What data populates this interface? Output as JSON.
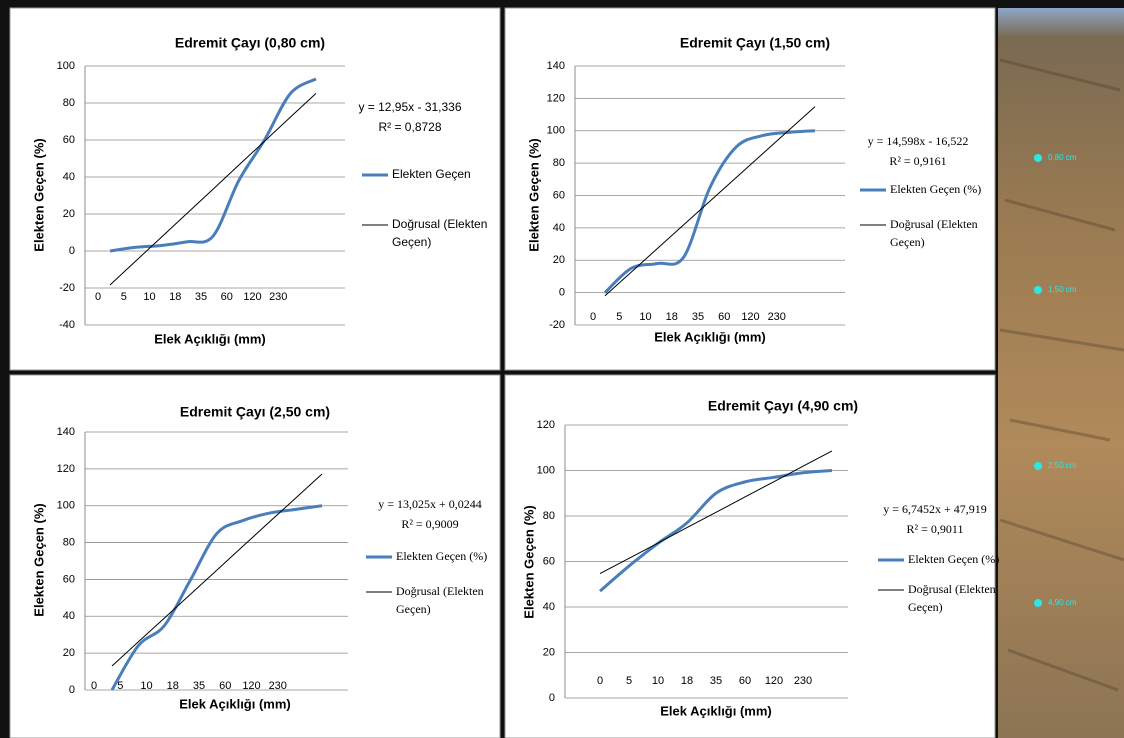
{
  "chart_data": [
    {
      "type": "line",
      "title": "Edremit Çayı (0,80 cm)",
      "xlabel": "Elek Açıklığı (mm)",
      "ylabel": "Elekten Geçen (%)",
      "categories": [
        "0",
        "5",
        "10",
        "18",
        "35",
        "60",
        "120",
        "230",
        null
      ],
      "series": [
        {
          "name": "Elekten Geçen",
          "color": "#4a7ebb",
          "values": [
            0,
            2,
            3,
            5,
            8,
            38,
            60,
            85,
            93
          ]
        },
        {
          "name": "Doğrusal (Elekten Geçen)",
          "color": "#000000",
          "values": [
            -18.4,
            -5.4,
            7.5,
            20.5,
            33.4,
            46.4,
            59.3,
            72.3,
            85.2
          ]
        }
      ],
      "ylim": [
        -40,
        100
      ],
      "yticks": [
        -40,
        -20,
        0,
        20,
        40,
        60,
        80,
        100
      ],
      "grid": true,
      "annotations": [
        "y = 12,95x - 31,336",
        "R² = 0,8728"
      ]
    },
    {
      "type": "line",
      "title": "Edremit Çayı (1,50 cm)",
      "xlabel": "Elek Açıklığı (mm)",
      "ylabel": "Elekten Geçen (%)",
      "categories": [
        "0",
        "5",
        "10",
        "18",
        "35",
        "60",
        "120",
        "230",
        null
      ],
      "series": [
        {
          "name": "Elekten Geçen (%)",
          "color": "#4a7ebb",
          "values": [
            0,
            15,
            18,
            22,
            65,
            90,
            97,
            99,
            100
          ]
        },
        {
          "name": "Doğrusal (Elekten Geçen)",
          "color": "#000000",
          "values": [
            -1.9,
            12.7,
            27.3,
            41.9,
            56.5,
            71.1,
            85.7,
            100.3,
            114.9
          ]
        }
      ],
      "ylim": [
        -20,
        140
      ],
      "yticks": [
        -20,
        0,
        20,
        40,
        60,
        80,
        100,
        120,
        140
      ],
      "grid": true,
      "annotations": [
        "y = 14,598x - 16,522",
        "R² = 0,9161"
      ]
    },
    {
      "type": "line",
      "title": "Edremit Çayı (2,50 cm)",
      "xlabel": "Elek Açıklığı (mm)",
      "ylabel": "Elekten Geçen (%)",
      "categories": [
        "0",
        "5",
        "10",
        "18",
        "35",
        "60",
        "120",
        "230",
        null
      ],
      "series": [
        {
          "name": "Elekten Geçen (%)",
          "color": "#4a7ebb",
          "values": [
            0,
            24,
            35,
            60,
            85,
            92,
            96,
            98,
            100
          ]
        },
        {
          "name": "Doğrusal (Elekten Geçen)",
          "color": "#000000",
          "values": [
            13.0,
            26.1,
            39.1,
            52.1,
            65.1,
            78.2,
            91.2,
            104.2,
            117.2
          ]
        }
      ],
      "ylim": [
        0,
        140
      ],
      "yticks": [
        0,
        20,
        40,
        60,
        80,
        100,
        120,
        140
      ],
      "grid": true,
      "annotations": [
        "y = 13,025x + 0,0244",
        "R² = 0,9009"
      ]
    },
    {
      "type": "line",
      "title": "Edremit Çayı (4,90 cm)",
      "xlabel": "Elek Açıklığı (mm)",
      "ylabel": "Elekten Geçen (%)",
      "categories": [
        "0",
        "5",
        "10",
        "18",
        "35",
        "60",
        "120",
        "230",
        null
      ],
      "series": [
        {
          "name": "Elekten Geçen (%)",
          "color": "#4a7ebb",
          "values": [
            47,
            58,
            68,
            77,
            90,
            95,
            97,
            99,
            100
          ]
        },
        {
          "name": "Doğrusal (Elekten Geçen)",
          "color": "#000000",
          "values": [
            54.7,
            61.4,
            68.1,
            74.9,
            81.6,
            88.4,
            95.1,
            101.9,
            108.6
          ]
        }
      ],
      "ylim": [
        0,
        120
      ],
      "yticks": [
        0,
        20,
        40,
        60,
        80,
        100,
        120
      ],
      "grid": true,
      "annotations": [
        "y = 6,7452x + 47,919",
        "R² = 0,9011"
      ]
    }
  ],
  "photo": {
    "labels": [
      "0,80 cm",
      "1,50 cm",
      "2,50 cm",
      "4,90 cm"
    ]
  }
}
